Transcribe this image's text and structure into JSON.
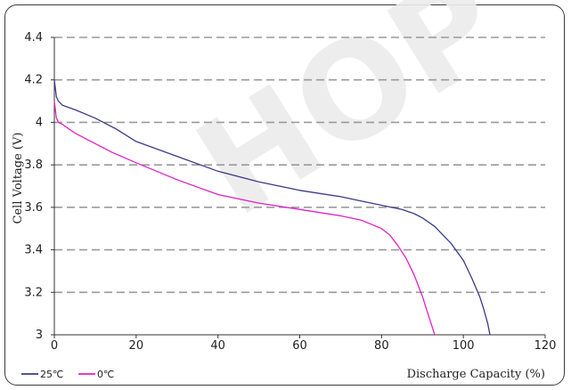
{
  "chart_data": {
    "type": "line",
    "title": "",
    "xlabel": "Discharge  Capacity (%)",
    "ylabel": "Cell Voltage (V)",
    "xlim": [
      0,
      120
    ],
    "ylim": [
      3.0,
      4.4
    ],
    "x_ticks": [
      0,
      20,
      40,
      60,
      80,
      100,
      120
    ],
    "y_ticks": [
      3,
      3.2,
      3.4,
      3.6,
      3.8,
      4,
      4.2,
      4.4
    ],
    "y_tick_labels": [
      "3",
      "3.2",
      "3.4",
      "3.6",
      "3.8",
      "4",
      "4.2",
      "4.4"
    ],
    "grid": "horizontal dashed",
    "legend_position": "bottom-left",
    "colors": {
      "series_25C": "#3a3a8c",
      "series_0C": "#e020c8",
      "grid": "#9a9a9a",
      "watermark": "#ececec"
    },
    "series": [
      {
        "name": "25℃",
        "x": [
          0,
          0.5,
          1,
          2,
          5,
          10,
          15,
          20,
          30,
          40,
          50,
          60,
          70,
          75,
          80,
          85,
          88,
          90,
          93,
          95,
          97,
          100,
          102,
          104,
          105,
          106,
          106.5
        ],
        "y": [
          4.2,
          4.12,
          4.1,
          4.08,
          4.06,
          4.02,
          3.97,
          3.91,
          3.84,
          3.77,
          3.72,
          3.68,
          3.65,
          3.63,
          3.61,
          3.59,
          3.57,
          3.55,
          3.51,
          3.47,
          3.43,
          3.35,
          3.27,
          3.18,
          3.12,
          3.05,
          3.0
        ]
      },
      {
        "name": "0℃",
        "x": [
          0,
          0.5,
          1,
          2,
          5,
          10,
          14,
          20,
          30,
          40,
          50,
          60,
          70,
          75,
          80,
          82,
          84,
          86,
          88,
          90,
          91,
          92,
          93
        ],
        "y": [
          4.1,
          4.02,
          4.0,
          3.99,
          3.95,
          3.9,
          3.86,
          3.81,
          3.73,
          3.66,
          3.62,
          3.59,
          3.56,
          3.54,
          3.5,
          3.47,
          3.42,
          3.36,
          3.28,
          3.18,
          3.12,
          3.06,
          3.0
        ]
      }
    ]
  },
  "watermark_text": "HOP"
}
